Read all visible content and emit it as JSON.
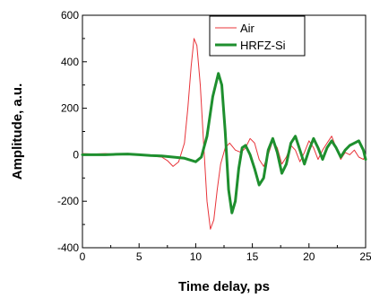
{
  "chart_data": {
    "type": "line",
    "title": "",
    "xlabel": "Time delay, ps",
    "ylabel": "Amplitude, a.u.",
    "xlim": [
      0,
      25
    ],
    "ylim": [
      -400,
      600
    ],
    "x_ticks": [
      0,
      5,
      10,
      15,
      20,
      25
    ],
    "x_tick_labels": [
      "0",
      "5",
      "10",
      "15",
      "20",
      "25"
    ],
    "y_ticks": [
      -400,
      -200,
      0,
      200,
      400,
      600
    ],
    "y_tick_labels": [
      "-400",
      "-200",
      "0",
      "200",
      "400",
      "600"
    ],
    "grid": false,
    "legend_position": "top-right",
    "series": [
      {
        "name": "Air",
        "color": "#e8343a",
        "x": [
          0,
          1,
          2,
          3,
          4,
          5,
          6,
          7,
          7.5,
          8,
          8.5,
          9,
          9.3,
          9.6,
          9.85,
          10.1,
          10.4,
          10.7,
          11,
          11.3,
          11.6,
          11.9,
          12.2,
          12.6,
          13,
          13.5,
          14,
          14.4,
          14.8,
          15.2,
          15.6,
          16,
          16.4,
          16.8,
          17.2,
          17.6,
          18,
          18.4,
          18.8,
          19.2,
          19.6,
          20,
          20.4,
          20.8,
          21.2,
          21.6,
          22,
          22.4,
          22.8,
          23.2,
          23.6,
          24,
          24.4,
          24.8,
          25
        ],
        "y": [
          5,
          3,
          5,
          2,
          3,
          0,
          -5,
          -10,
          -25,
          -50,
          -30,
          50,
          200,
          380,
          500,
          470,
          300,
          50,
          -200,
          -320,
          -280,
          -150,
          -40,
          30,
          50,
          20,
          10,
          30,
          70,
          50,
          -20,
          -50,
          0,
          60,
          30,
          -40,
          -10,
          40,
          20,
          -30,
          10,
          60,
          30,
          -20,
          20,
          50,
          80,
          30,
          -20,
          10,
          0,
          20,
          -10,
          -20,
          0
        ]
      },
      {
        "name": "HRFZ-Si",
        "color": "#1e8f2e",
        "x": [
          0,
          1,
          2,
          3,
          4,
          5,
          6,
          7,
          8,
          9,
          10,
          10.5,
          11,
          11.5,
          12,
          12.3,
          12.6,
          12.9,
          13.2,
          13.5,
          13.8,
          14.1,
          14.4,
          14.8,
          15.2,
          15.6,
          16,
          16.4,
          16.8,
          17.2,
          17.6,
          18,
          18.4,
          18.8,
          19.2,
          19.6,
          20,
          20.4,
          20.8,
          21.2,
          21.6,
          22,
          22.4,
          22.8,
          23.2,
          23.6,
          24,
          24.4,
          24.8,
          25
        ],
        "y": [
          0,
          0,
          0,
          2,
          3,
          0,
          -3,
          -5,
          -10,
          -15,
          -30,
          -10,
          80,
          250,
          350,
          300,
          100,
          -150,
          -250,
          -200,
          -60,
          30,
          40,
          0,
          -60,
          -130,
          -100,
          20,
          70,
          10,
          -80,
          -40,
          50,
          80,
          20,
          -40,
          20,
          70,
          30,
          -20,
          30,
          60,
          30,
          -10,
          20,
          40,
          50,
          60,
          20,
          -20
        ]
      }
    ]
  }
}
